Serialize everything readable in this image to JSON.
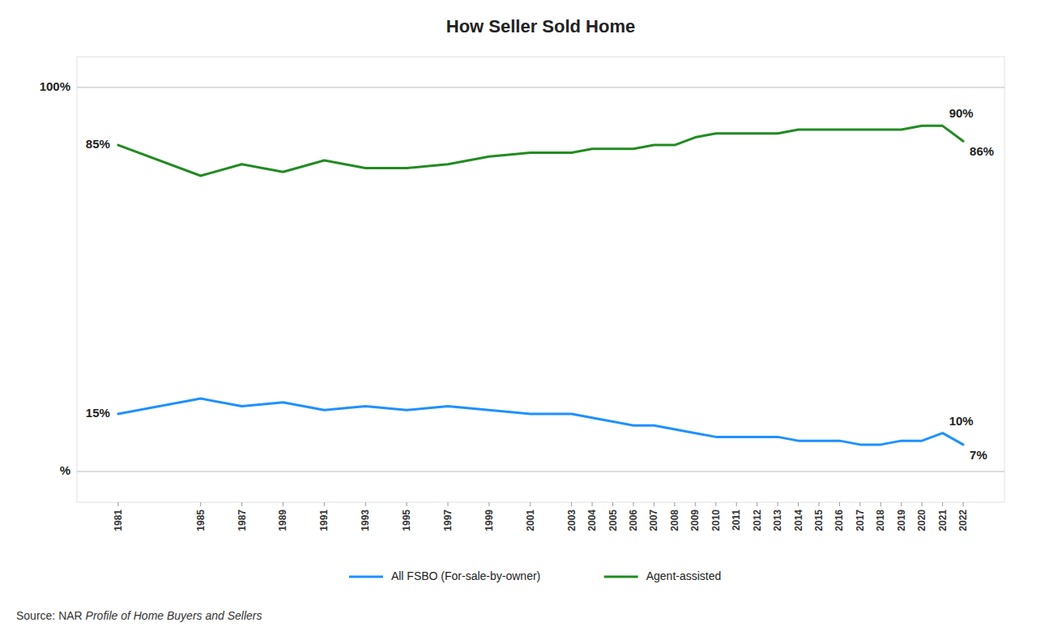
{
  "chart_data": {
    "type": "line",
    "title": "How Seller Sold Home",
    "x": [
      1981,
      1985,
      1987,
      1989,
      1991,
      1993,
      1995,
      1997,
      1999,
      2001,
      2003,
      2004,
      2005,
      2006,
      2007,
      2008,
      2009,
      2010,
      2011,
      2012,
      2013,
      2014,
      2015,
      2016,
      2017,
      2018,
      2019,
      2020,
      2021,
      2022
    ],
    "series": [
      {
        "name": "All FSBO (For-sale-by-owner)",
        "color": "#1E90FF",
        "values": [
          15,
          19,
          17,
          18,
          16,
          17,
          16,
          17,
          16,
          15,
          15,
          14,
          13,
          12,
          12,
          11,
          10,
          9,
          9,
          9,
          9,
          8,
          8,
          8,
          7,
          7,
          8,
          8,
          10,
          7
        ]
      },
      {
        "name": "Agent-assisted",
        "color": "#228B22",
        "values": [
          85,
          77,
          80,
          78,
          81,
          79,
          79,
          80,
          82,
          83,
          83,
          84,
          84,
          84,
          85,
          85,
          87,
          88,
          88,
          88,
          88,
          89,
          89,
          89,
          89,
          89,
          89,
          90,
          90,
          86
        ]
      }
    ],
    "xlim": [
      1979.0,
      2024.0
    ],
    "xticks": [
      1981,
      1985,
      1987,
      1989,
      1991,
      1993,
      1995,
      1997,
      1999,
      2001,
      2003,
      2004,
      2005,
      2006,
      2007,
      2008,
      2009,
      2010,
      2011,
      2012,
      2013,
      2014,
      2015,
      2016,
      2017,
      2018,
      2019,
      2020,
      2021,
      2022
    ],
    "ylim": [
      -8,
      108
    ],
    "yticks": [
      {
        "value": 100,
        "label": "100%"
      },
      {
        "value": 0,
        "label": "%"
      }
    ],
    "grid": true,
    "legend": "bottom",
    "annotations": [
      {
        "text": "85%",
        "x": 1981,
        "y": 85
      },
      {
        "text": "90%",
        "x": 2021,
        "y": 90
      },
      {
        "text": "86%",
        "x": 2022,
        "y": 86
      },
      {
        "text": "15%",
        "x": 1981,
        "y": 15
      },
      {
        "text": "10%",
        "x": 2021,
        "y": 10
      },
      {
        "text": "7%",
        "x": 2022,
        "y": 7
      }
    ],
    "source": [
      "Source: NAR ",
      "Profile of Home Buyers and Sellers"
    ]
  }
}
